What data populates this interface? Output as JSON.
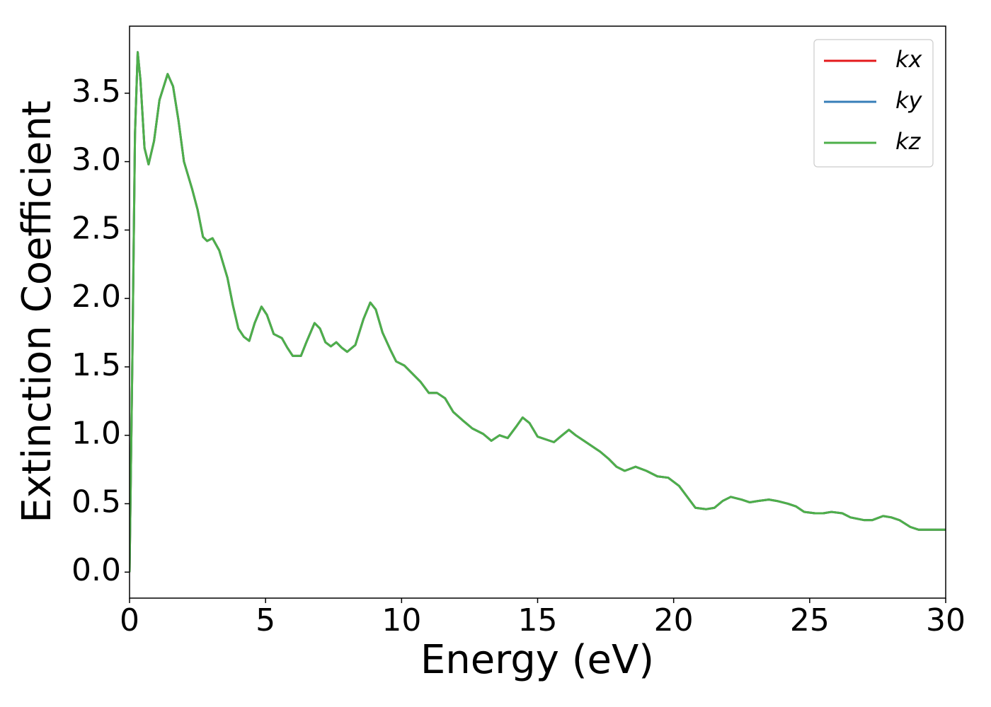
{
  "chart_data": {
    "type": "line",
    "xlabel": "Energy (eV)",
    "ylabel": "Extinction Coefficient",
    "xlim": [
      0,
      30
    ],
    "ylim": [
      -0.19,
      3.99
    ],
    "xticks": [
      0,
      5,
      10,
      15,
      20,
      25,
      30
    ],
    "yticks": [
      {
        "value": 0,
        "label": "0.0"
      },
      0.5,
      {
        "value": 1,
        "label": "1.0"
      },
      1.5,
      {
        "value": 2,
        "label": "2.0"
      },
      2.5,
      {
        "value": 3,
        "label": "3.0"
      },
      3.5
    ],
    "legend": "upper right",
    "grid": false,
    "x": [
      0,
      0.1,
      0.2,
      0.3,
      0.4,
      0.55,
      0.7,
      0.9,
      1.1,
      1.4,
      1.6,
      1.8,
      2.0,
      2.3,
      2.5,
      2.7,
      2.85,
      3.05,
      3.3,
      3.6,
      3.8,
      4.0,
      4.2,
      4.4,
      4.6,
      4.85,
      5.05,
      5.3,
      5.6,
      5.8,
      6.0,
      6.3,
      6.5,
      6.8,
      7.0,
      7.2,
      7.4,
      7.6,
      7.8,
      8.0,
      8.3,
      8.6,
      8.85,
      9.05,
      9.3,
      9.6,
      9.8,
      10.1,
      10.4,
      10.7,
      11.0,
      11.3,
      11.6,
      11.9,
      12.3,
      12.6,
      13.0,
      13.3,
      13.6,
      13.9,
      14.2,
      14.45,
      14.7,
      15.0,
      15.3,
      15.6,
      15.9,
      16.15,
      16.4,
      16.7,
      17.0,
      17.3,
      17.6,
      17.9,
      18.2,
      18.6,
      19.0,
      19.4,
      19.8,
      20.2,
      20.5,
      20.8,
      21.2,
      21.5,
      21.8,
      22.1,
      22.5,
      22.8,
      23.1,
      23.5,
      23.8,
      24.2,
      24.5,
      24.8,
      25.2,
      25.5,
      25.8,
      26.2,
      26.5,
      27.0,
      27.3,
      27.7,
      28.0,
      28.3,
      28.7,
      29.0,
      29.5,
      30.0
    ],
    "series": [
      {
        "name": "kx",
        "color": "#e41a1c",
        "values": [
          0,
          1.5,
          3.2,
          3.8,
          3.6,
          3.1,
          2.98,
          3.15,
          3.45,
          3.64,
          3.55,
          3.3,
          3.0,
          2.8,
          2.65,
          2.45,
          2.42,
          2.44,
          2.35,
          2.15,
          1.95,
          1.78,
          1.72,
          1.69,
          1.82,
          1.94,
          1.88,
          1.74,
          1.71,
          1.64,
          1.58,
          1.58,
          1.68,
          1.82,
          1.78,
          1.68,
          1.65,
          1.68,
          1.64,
          1.61,
          1.66,
          1.85,
          1.97,
          1.92,
          1.75,
          1.62,
          1.54,
          1.51,
          1.45,
          1.39,
          1.31,
          1.31,
          1.27,
          1.17,
          1.1,
          1.05,
          1.01,
          0.96,
          1.0,
          0.98,
          1.06,
          1.13,
          1.09,
          0.99,
          0.97,
          0.95,
          1.0,
          1.04,
          1.0,
          0.96,
          0.92,
          0.88,
          0.83,
          0.77,
          0.74,
          0.77,
          0.74,
          0.7,
          0.69,
          0.63,
          0.55,
          0.47,
          0.46,
          0.47,
          0.52,
          0.55,
          0.53,
          0.51,
          0.52,
          0.53,
          0.52,
          0.5,
          0.48,
          0.44,
          0.43,
          0.43,
          0.44,
          0.43,
          0.4,
          0.38,
          0.38,
          0.41,
          0.4,
          0.38,
          0.33,
          0.31,
          0.31,
          0.31
        ]
      },
      {
        "name": "ky",
        "color": "#377eb8",
        "values": [
          0,
          1.5,
          3.2,
          3.8,
          3.6,
          3.1,
          2.98,
          3.15,
          3.45,
          3.64,
          3.55,
          3.3,
          3.0,
          2.8,
          2.65,
          2.45,
          2.42,
          2.44,
          2.35,
          2.15,
          1.95,
          1.78,
          1.72,
          1.69,
          1.82,
          1.94,
          1.88,
          1.74,
          1.71,
          1.64,
          1.58,
          1.58,
          1.68,
          1.82,
          1.78,
          1.68,
          1.65,
          1.68,
          1.64,
          1.61,
          1.66,
          1.85,
          1.97,
          1.92,
          1.75,
          1.62,
          1.54,
          1.51,
          1.45,
          1.39,
          1.31,
          1.31,
          1.27,
          1.17,
          1.1,
          1.05,
          1.01,
          0.96,
          1.0,
          0.98,
          1.06,
          1.13,
          1.09,
          0.99,
          0.97,
          0.95,
          1.0,
          1.04,
          1.0,
          0.96,
          0.92,
          0.88,
          0.83,
          0.77,
          0.74,
          0.77,
          0.74,
          0.7,
          0.69,
          0.63,
          0.55,
          0.47,
          0.46,
          0.47,
          0.52,
          0.55,
          0.53,
          0.51,
          0.52,
          0.53,
          0.52,
          0.5,
          0.48,
          0.44,
          0.43,
          0.43,
          0.44,
          0.43,
          0.4,
          0.38,
          0.38,
          0.41,
          0.4,
          0.38,
          0.33,
          0.31,
          0.31,
          0.31
        ]
      },
      {
        "name": "kz",
        "color": "#4daf4a",
        "values": [
          0,
          1.5,
          3.2,
          3.8,
          3.6,
          3.1,
          2.98,
          3.15,
          3.45,
          3.64,
          3.55,
          3.3,
          3.0,
          2.8,
          2.65,
          2.45,
          2.42,
          2.44,
          2.35,
          2.15,
          1.95,
          1.78,
          1.72,
          1.69,
          1.82,
          1.94,
          1.88,
          1.74,
          1.71,
          1.64,
          1.58,
          1.58,
          1.68,
          1.82,
          1.78,
          1.68,
          1.65,
          1.68,
          1.64,
          1.61,
          1.66,
          1.85,
          1.97,
          1.92,
          1.75,
          1.62,
          1.54,
          1.51,
          1.45,
          1.39,
          1.31,
          1.31,
          1.27,
          1.17,
          1.1,
          1.05,
          1.01,
          0.96,
          1.0,
          0.98,
          1.06,
          1.13,
          1.09,
          0.99,
          0.97,
          0.95,
          1.0,
          1.04,
          1.0,
          0.96,
          0.92,
          0.88,
          0.83,
          0.77,
          0.74,
          0.77,
          0.74,
          0.7,
          0.69,
          0.63,
          0.55,
          0.47,
          0.46,
          0.47,
          0.52,
          0.55,
          0.53,
          0.51,
          0.52,
          0.53,
          0.52,
          0.5,
          0.48,
          0.44,
          0.43,
          0.43,
          0.44,
          0.43,
          0.4,
          0.38,
          0.38,
          0.41,
          0.4,
          0.38,
          0.33,
          0.31,
          0.31,
          0.31
        ]
      }
    ]
  }
}
